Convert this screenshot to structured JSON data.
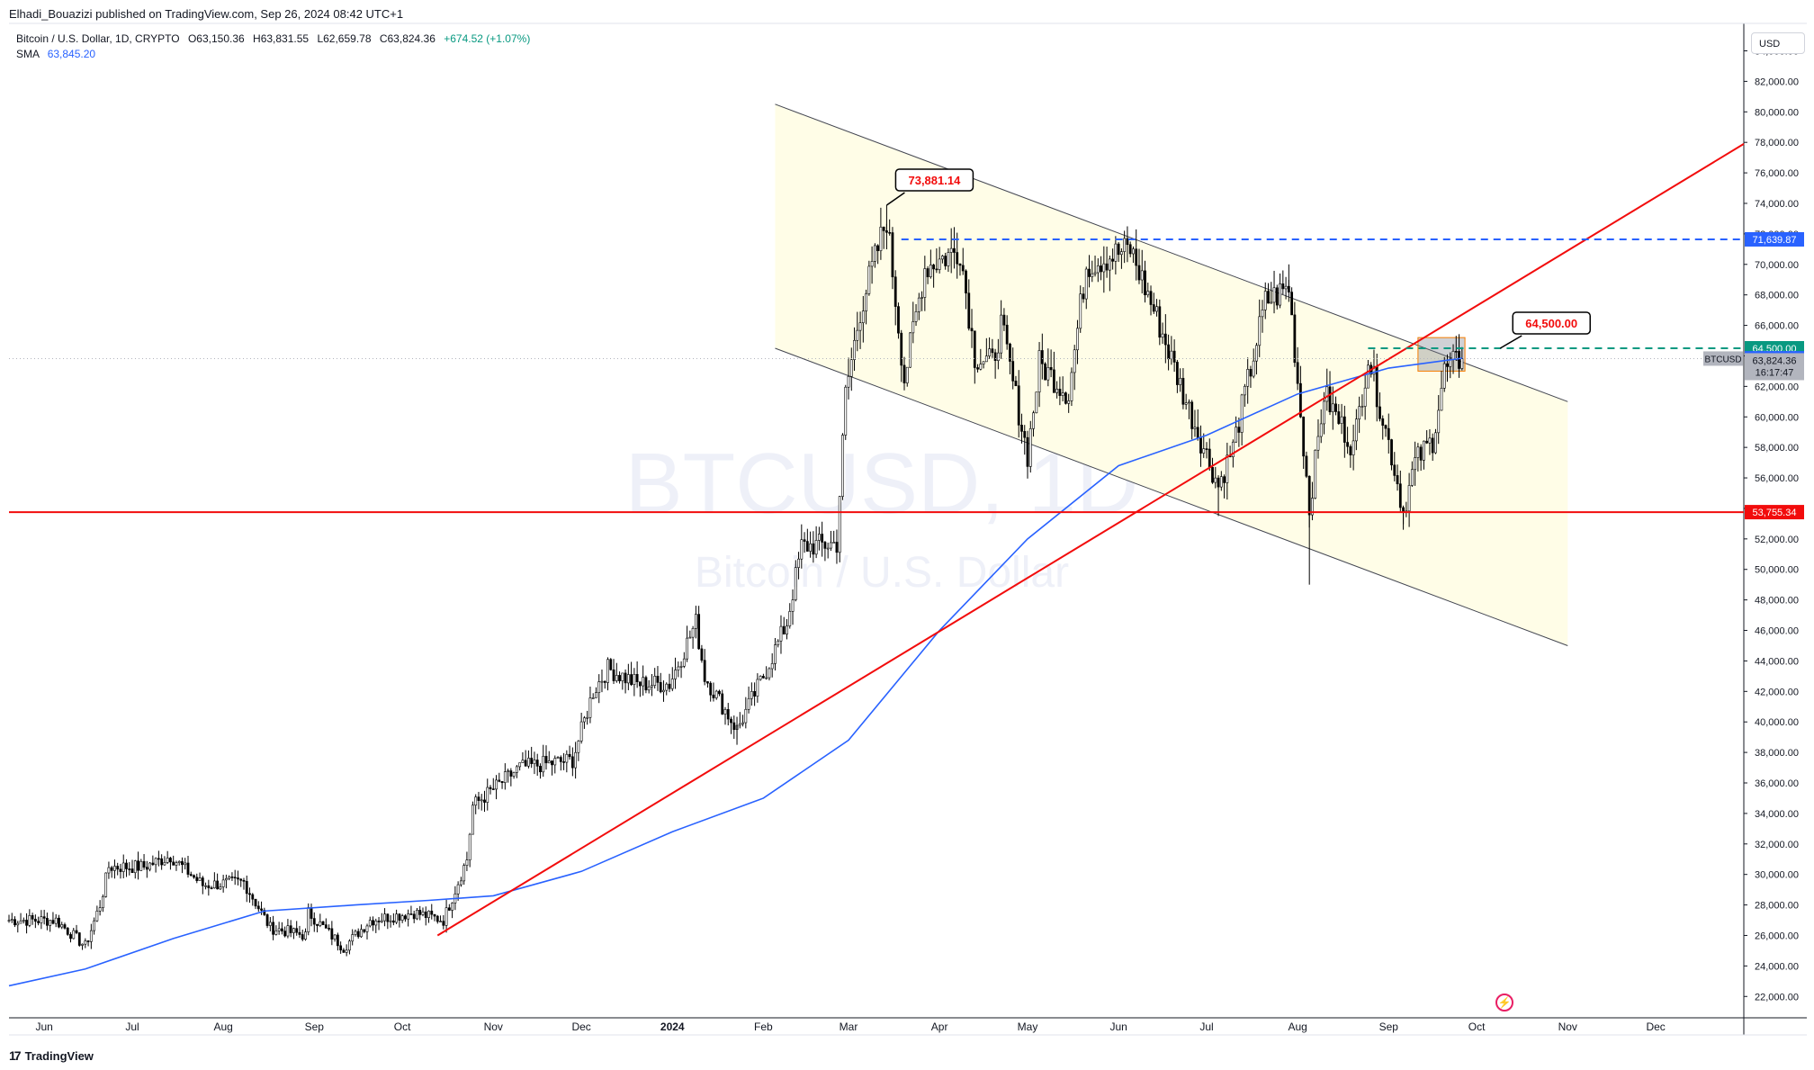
{
  "header": {
    "published_by": "Elhadi_Bouazizi published on TradingView.com, Sep 26, 2024 08:42 UTC+1"
  },
  "legend": {
    "symbol": "Bitcoin / U.S. Dollar, 1D, CRYPTO",
    "open": "O63,150.36",
    "high": "H63,831.55",
    "low": "L62,659.78",
    "close": "C63,824.36",
    "change": "+674.52 (+1.07%)",
    "sma_label": "SMA",
    "sma_value": "63,845.20"
  },
  "currency": "USD",
  "watermark": {
    "title": "BTCUSD, 1D",
    "subtitle": "Bitcoin / U.S. Dollar"
  },
  "footer": {
    "brand": "TradingView",
    "logo_icon": "tradingview-logo-icon"
  },
  "icons": {
    "lightning": "lightning-icon"
  },
  "chart_data": {
    "type": "candlestick",
    "y_axis": {
      "range": [
        20600,
        85800
      ],
      "tick_values": [
        22000,
        24000,
        26000,
        28000,
        30000,
        32000,
        34000,
        36000,
        38000,
        40000,
        42000,
        44000,
        46000,
        48000,
        50000,
        52000,
        54000,
        56000,
        58000,
        60000,
        62000,
        64000,
        66000,
        68000,
        70000,
        72000,
        74000,
        76000,
        78000,
        80000,
        82000,
        84000
      ],
      "tick_labels": [
        "22,000.00",
        "24,000.00",
        "26,000.00",
        "28,000.00",
        "30,000.00",
        "32,000.00",
        "34,000.00",
        "36,000.00",
        "38,000.00",
        "40,000.00",
        "42,000.00",
        "44,000.00",
        "46,000.00",
        "48,000.00",
        "50,000.00",
        "52,000.00",
        "54,000.00",
        "56,000.00",
        "58,000.00",
        "60,000.00",
        "62,000.00",
        "64,000.00",
        "66,000.00",
        "68,000.00",
        "70,000.00",
        "72,000.00",
        "74,000.00",
        "76,000.00",
        "78,000.00",
        "80,000.00",
        "82,000.00",
        "84,000.00"
      ],
      "side": "right",
      "unit": "USD"
    },
    "x_axis": {
      "start": "2023-05-20",
      "end": "2024-12-31",
      "ticks": [
        {
          "date": "2023-06-01",
          "label": "Jun"
        },
        {
          "date": "2023-07-01",
          "label": "Jul"
        },
        {
          "date": "2023-08-01",
          "label": "Aug"
        },
        {
          "date": "2023-09-01",
          "label": "Sep"
        },
        {
          "date": "2023-10-01",
          "label": "Oct"
        },
        {
          "date": "2023-11-01",
          "label": "Nov"
        },
        {
          "date": "2023-12-01",
          "label": "Dec"
        },
        {
          "date": "2024-01-01",
          "label": "2024"
        },
        {
          "date": "2024-02-01",
          "label": "Feb"
        },
        {
          "date": "2024-03-01",
          "label": "Mar"
        },
        {
          "date": "2024-04-01",
          "label": "Apr"
        },
        {
          "date": "2024-05-01",
          "label": "May"
        },
        {
          "date": "2024-06-01",
          "label": "Jun"
        },
        {
          "date": "2024-07-01",
          "label": "Jul"
        },
        {
          "date": "2024-08-01",
          "label": "Aug"
        },
        {
          "date": "2024-09-01",
          "label": "Sep"
        },
        {
          "date": "2024-10-01",
          "label": "Oct"
        },
        {
          "date": "2024-11-01",
          "label": "Nov"
        },
        {
          "date": "2024-12-01",
          "label": "Dec"
        }
      ]
    },
    "price_path": [
      [
        "2023-05-20",
        27000
      ],
      [
        "2023-06-05",
        27000
      ],
      [
        "2023-06-15",
        25300
      ],
      [
        "2023-06-20",
        28000
      ],
      [
        "2023-06-23",
        30500
      ],
      [
        "2023-07-05",
        30500
      ],
      [
        "2023-07-14",
        31200
      ],
      [
        "2023-07-25",
        29300
      ],
      [
        "2023-08-08",
        29500
      ],
      [
        "2023-08-17",
        26500
      ],
      [
        "2023-08-29",
        26000
      ],
      [
        "2023-08-30",
        27500
      ],
      [
        "2023-09-11",
        25200
      ],
      [
        "2023-09-20",
        27000
      ],
      [
        "2023-10-05",
        27500
      ],
      [
        "2023-10-15",
        27000
      ],
      [
        "2023-10-23",
        31000
      ],
      [
        "2023-10-25",
        34500
      ],
      [
        "2023-11-10",
        37000
      ],
      [
        "2023-11-28",
        37500
      ],
      [
        "2023-12-05",
        42000
      ],
      [
        "2023-12-10",
        43500
      ],
      [
        "2023-12-20",
        42500
      ],
      [
        "2023-12-31",
        42500
      ],
      [
        "2024-01-09",
        46500
      ],
      [
        "2024-01-12",
        43000
      ],
      [
        "2024-01-23",
        39500
      ],
      [
        "2024-02-01",
        43000
      ],
      [
        "2024-02-09",
        46500
      ],
      [
        "2024-02-14",
        51500
      ],
      [
        "2024-02-26",
        51700
      ],
      [
        "2024-02-29",
        61500
      ],
      [
        "2024-03-05",
        67000
      ],
      [
        "2024-03-14",
        73000
      ],
      [
        "2024-03-20",
        62500
      ],
      [
        "2024-03-27",
        69800
      ],
      [
        "2024-04-08",
        71000
      ],
      [
        "2024-04-13",
        64000
      ],
      [
        "2024-04-19",
        63500
      ],
      [
        "2024-04-22",
        66000
      ],
      [
        "2024-05-01",
        57500
      ],
      [
        "2024-05-05",
        63500
      ],
      [
        "2024-05-15",
        61500
      ],
      [
        "2024-05-21",
        70000
      ],
      [
        "2024-06-05",
        71000
      ],
      [
        "2024-06-15",
        66000
      ],
      [
        "2024-06-24",
        61000
      ],
      [
        "2024-07-05",
        55500
      ],
      [
        "2024-07-10",
        58000
      ],
      [
        "2024-07-21",
        67500
      ],
      [
        "2024-07-29",
        68500
      ],
      [
        "2024-08-05",
        54000
      ],
      [
        "2024-08-10",
        61500
      ],
      [
        "2024-08-20",
        58000
      ],
      [
        "2024-08-25",
        64000
      ],
      [
        "2024-09-02",
        57500
      ],
      [
        "2024-09-06",
        53800
      ],
      [
        "2024-09-10",
        57000
      ],
      [
        "2024-09-16",
        58500
      ],
      [
        "2024-09-20",
        63000
      ],
      [
        "2024-09-26",
        63824
      ]
    ],
    "sma": {
      "name": "SMA",
      "points": [
        [
          "2023-05-20",
          22700
        ],
        [
          "2023-06-15",
          23800
        ],
        [
          "2023-07-15",
          25800
        ],
        [
          "2023-08-15",
          27600
        ],
        [
          "2023-09-15",
          28000
        ],
        [
          "2023-10-10",
          28300
        ],
        [
          "2023-11-01",
          28600
        ],
        [
          "2023-12-01",
          30200
        ],
        [
          "2024-01-01",
          32800
        ],
        [
          "2024-02-01",
          35000
        ],
        [
          "2024-03-01",
          38800
        ],
        [
          "2024-04-01",
          46000
        ],
        [
          "2024-05-01",
          52000
        ],
        [
          "2024-06-01",
          56800
        ],
        [
          "2024-07-01",
          58800
        ],
        [
          "2024-08-01",
          61500
        ],
        [
          "2024-09-01",
          63200
        ],
        [
          "2024-09-26",
          63845
        ]
      ]
    },
    "lines": [
      {
        "name": "rising-trendline",
        "style": "solid",
        "color": "#f20c0c",
        "points": [
          [
            "2023-10-13",
            26000
          ],
          [
            "2024-12-31",
            77900
          ]
        ]
      },
      {
        "name": "support-line",
        "style": "solid",
        "color": "#f20c0c",
        "points": [
          [
            "2023-05-20",
            53755.34
          ],
          [
            "2024-12-31",
            53755.34
          ]
        ]
      },
      {
        "name": "resistance-line",
        "style": "dashed",
        "color": "#2962ff",
        "points": [
          [
            "2024-03-19",
            71639.87
          ],
          [
            "2024-12-31",
            71639.87
          ]
        ]
      },
      {
        "name": "target-line",
        "style": "dashed",
        "color": "#089981",
        "points": [
          [
            "2024-08-25",
            64500
          ],
          [
            "2024-12-31",
            64500
          ]
        ]
      },
      {
        "name": "last-price-line",
        "style": "dotted",
        "color": "#b2b5be",
        "points": [
          [
            "2023-05-20",
            63824.36
          ],
          [
            "2024-12-31",
            63824.36
          ]
        ]
      }
    ],
    "channel": {
      "upper": [
        [
          "2024-02-05",
          80500
        ],
        [
          "2024-11-01",
          61000
        ]
      ],
      "lower": [
        [
          "2024-02-05",
          64500
        ],
        [
          "2024-11-01",
          45000
        ]
      ],
      "fill": "#fffde7"
    },
    "labels": [
      {
        "text": "73,881.14",
        "date": "2024-03-14",
        "price": 73881.14
      },
      {
        "text": "64,500.00",
        "date": "2024-10-09",
        "price": 64500
      }
    ],
    "price_labels": [
      {
        "text": "71,639.87",
        "price": 71639.87,
        "color": "#2962ff"
      },
      {
        "text": "64,500.00",
        "price": 64500,
        "color": "#089981"
      },
      {
        "text": "63,845.20",
        "price": 63845.2,
        "color": "#2962ff"
      },
      {
        "text": "53,755.34",
        "price": 53755.34,
        "color": "#f20c0c"
      }
    ],
    "current_price": {
      "symbol": "BTCUSD",
      "price_text": "63,824.36",
      "countdown": "16:17:47",
      "price": 63824.36
    },
    "highlight_box": {
      "start": "2024-09-11",
      "end": "2024-09-27",
      "low": 63000,
      "high": 65200
    }
  }
}
